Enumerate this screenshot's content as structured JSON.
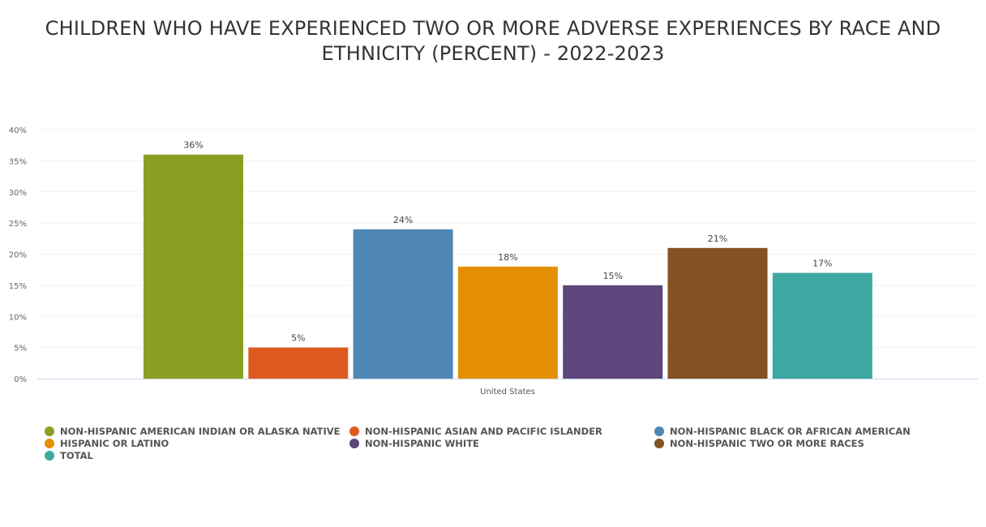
{
  "chart_data": {
    "type": "bar",
    "title": "CHILDREN WHO HAVE EXPERIENCED TWO OR MORE ADVERSE EXPERIENCES BY RACE AND ETHNICITY (PERCENT) - 2022-2023",
    "categories": [
      "United States"
    ],
    "xlabel": "",
    "ylabel": "",
    "ylim": [
      0,
      40
    ],
    "yticks": [
      "0%",
      "5%",
      "10%",
      "15%",
      "20%",
      "25%",
      "30%",
      "35%",
      "40%"
    ],
    "grid": true,
    "legend_position": "bottom",
    "series": [
      {
        "name": "NON-HISPANIC AMERICAN INDIAN OR ALASKA NATIVE",
        "values": [
          36
        ],
        "label": "36%",
        "color": "#8c9d24"
      },
      {
        "name": "NON-HISPANIC ASIAN AND PACIFIC ISLANDER",
        "values": [
          5
        ],
        "label": "5%",
        "color": "#de5b20"
      },
      {
        "name": "NON-HISPANIC BLACK OR AFRICAN AMERICAN",
        "values": [
          24
        ],
        "label": "24%",
        "color": "#4f87b4"
      },
      {
        "name": "HISPANIC OR LATINO",
        "values": [
          18
        ],
        "label": "18%",
        "color": "#e59003"
      },
      {
        "name": "NON-HISPANIC WHITE",
        "values": [
          15
        ],
        "label": "15%",
        "color": "#5c467b"
      },
      {
        "name": "NON-HISPANIC TWO OR MORE RACES",
        "values": [
          21
        ],
        "label": "21%",
        "color": "#825223"
      },
      {
        "name": "TOTAL",
        "values": [
          17
        ],
        "label": "17%",
        "color": "#3ea8a3"
      }
    ]
  }
}
